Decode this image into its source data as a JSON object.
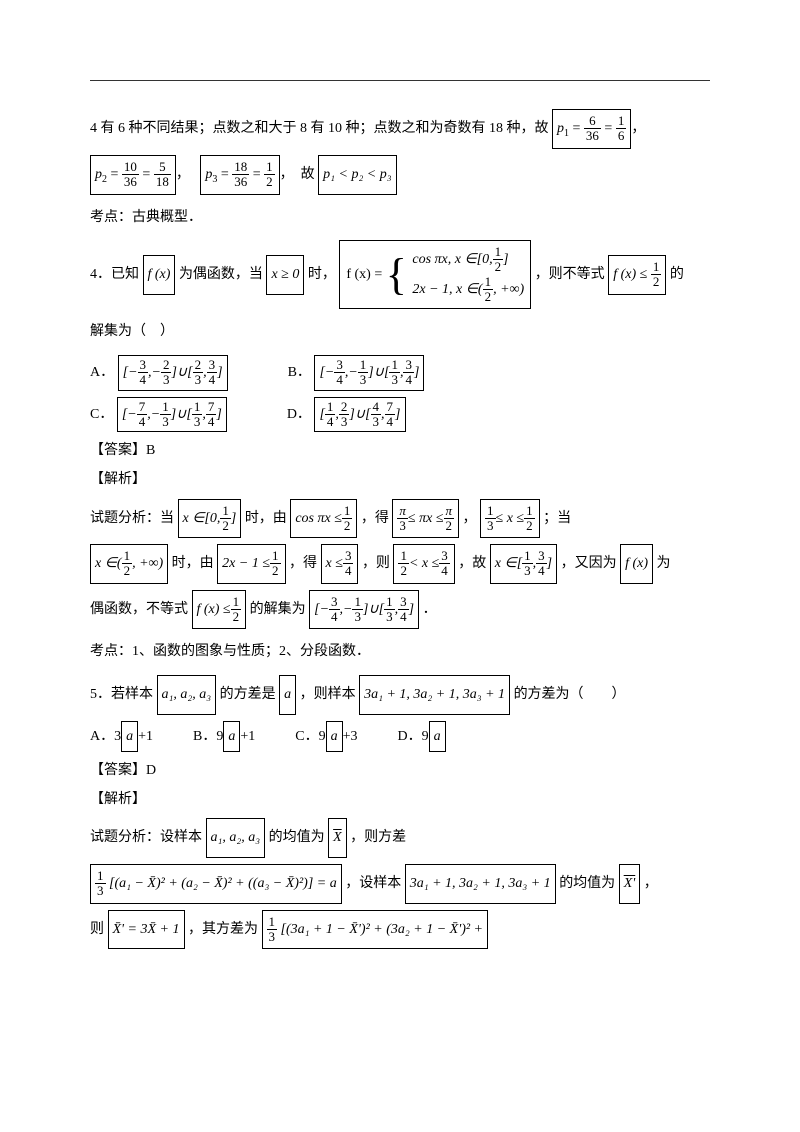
{
  "l1_a": "4 有 6 种不同结果；点数之和大于 8 有 10 种；点数之和为奇数有 18 种，故",
  "p1": "p",
  "eq": "=",
  "f6": "6",
  "f36": "36",
  "f1": "1",
  "f10": "10",
  "f5": "5",
  "f18": "18",
  "f2": "2",
  "f3": "3",
  "f4": "4",
  "f7": "7",
  "f9": "9",
  "f12": "12",
  "f13": "13",
  "comma": "，",
  "gu": "故",
  "p1ltp2ltp3": "p₁ < p₂ < p₃",
  "kaodian1": "考点：古典概型．",
  "q4_a": "4．已知",
  "fx": "f (x)",
  "q4_b": "为偶函数，当",
  "xge0": "x ≥ 0",
  "q4_c": "时，",
  "fx_eq": "f (x) =",
  "cospx": "cos πx, x ∈[0,",
  "half_rb": "]",
  "_2xm1": "2x − 1, x ∈(",
  "inf": ", +∞)",
  "q4_d": "，则不等式",
  "fxle": "f (x) ≤",
  "q4_e": "的",
  "jiejiwei": "解集为（　）",
  "A": "A．",
  "B": "B．",
  "C": "C．",
  "D": "D．",
  "U": "]∪[",
  "lb": "[−",
  "cm": ",−",
  "rb": "]",
  "lb2": "[",
  "c2": ",",
  "ans_b": "【答案】B",
  "jiexi": "【解析】",
  "shiti": "试题分析：当",
  "xin0half": "x ∈[0,",
  "shi1": "时，由",
  "cospxle": "cos πx ≤",
  "de": "，得",
  "pi3": "π",
  "lepxle": "≤ πx ≤",
  "lexle": "≤ x ≤",
  "dang": "；当",
  "xinhalf": "x ∈(",
  "you": "时，由",
  "_2xm1le": "2x − 1 ≤",
  "xle": "x ≤",
  "ze": "，则",
  "ltxle": "< x ≤",
  "guxin": "，故",
  "xin": "x ∈[",
  "youyin": "，又因为",
  "wei": "为",
  "oushu": "偶函数，不等式",
  "jiejiis": "的解集为",
  "period": "．",
  "kaodian2": "考点：1、函数的图象与性质；2、分段函数．",
  "q5_a": "5．若样本",
  "a123": "a₁, a₂, a₃",
  "q5_b": "的方差是",
  "a": "a",
  "q5_c": "，则样本",
  "sample2": "3a₁ + 1, 3a₂ + 1, 3a₃ + 1",
  "q5_d": "的方差为（　　）",
  "optA": "A．3",
  "plus1": "+1",
  "optB": "B．9",
  "optC": "C．9",
  "plus3": "+3",
  "optD": "D．9",
  "ans_d": "【答案】D",
  "shiti2": "试题分析：设样本",
  "junzhi": "的均值为",
  "X": "X",
  "zefc": "，则方差",
  "var_expr": "[(a₁ − X̄)² + (a₂ − X̄)² + ((a₃ − X̄)²)] = a",
  "she": "，设样本",
  "junzhi2": "的均值为",
  "Xp": "X'",
  "ze2": "则",
  "xp_eq": "X̄' = 3X̄ + 1",
  "qifc": "，其方差为",
  "var2": "[(3a₁ + 1 − X̄')² + (3a₂ + 1 − X̄')² +"
}
